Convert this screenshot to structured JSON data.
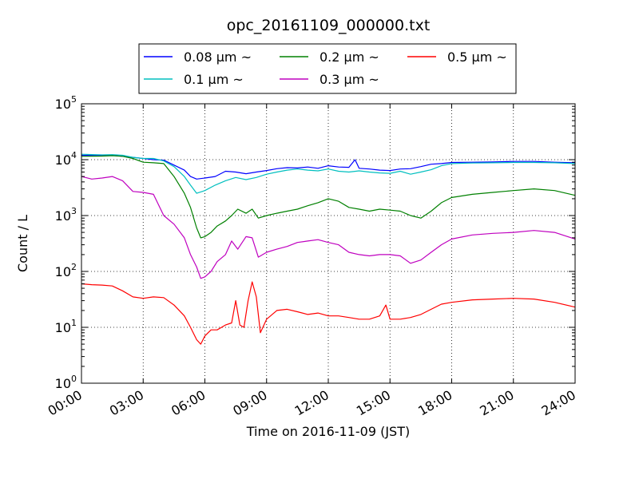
{
  "chart_data": {
    "type": "line",
    "title": "opc_20161109_000000.txt",
    "xlabel": "Time on 2016-11-09 (JST)",
    "ylabel": "Count / L",
    "x_ticks": [
      "00:00",
      "03:00",
      "06:00",
      "09:00",
      "12:00",
      "15:00",
      "18:00",
      "21:00",
      "24:00"
    ],
    "y_ticks": [
      {
        "base": "10",
        "exp": "0"
      },
      {
        "base": "10",
        "exp": "1"
      },
      {
        "base": "10",
        "exp": "2"
      },
      {
        "base": "10",
        "exp": "3"
      },
      {
        "base": "10",
        "exp": "4"
      },
      {
        "base": "10",
        "exp": "5"
      }
    ],
    "yscale": "log",
    "ylim": [
      1,
      100000
    ],
    "xlim_hours": [
      0,
      24
    ],
    "grid": true,
    "legend_position": "top-center, above plot",
    "series": [
      {
        "name": "0.08 μm ~",
        "color": "#0000ff",
        "x": [
          0,
          1,
          1.5,
          2,
          2.5,
          3,
          3.5,
          4,
          4.5,
          5,
          5.3,
          5.6,
          6,
          6.5,
          7,
          7.5,
          8,
          8.5,
          9,
          9.5,
          10,
          10.5,
          11,
          11.5,
          12,
          12.5,
          13,
          13.3,
          13.5,
          14,
          14.5,
          15,
          15.5,
          16,
          16.5,
          17,
          17.5,
          18,
          19,
          20,
          21,
          22,
          23,
          24
        ],
        "y": [
          12000,
          11800,
          12000,
          11500,
          11000,
          10500,
          10000,
          9800,
          8000,
          6500,
          5000,
          4500,
          4700,
          5000,
          6200,
          6000,
          5600,
          6000,
          6400,
          6900,
          7200,
          7100,
          7400,
          7000,
          7800,
          7400,
          7300,
          10000,
          7000,
          6800,
          6500,
          6400,
          6800,
          6900,
          7500,
          8300,
          8500,
          8900,
          9000,
          9100,
          9300,
          9300,
          9000,
          8800
        ]
      },
      {
        "name": "0.1 μm ~",
        "color": "#00bfbf",
        "x": [
          0,
          1,
          1.5,
          2,
          2.5,
          3,
          3.5,
          4,
          4.5,
          5,
          5.3,
          5.6,
          6,
          6.5,
          7,
          7.5,
          8,
          8.5,
          9,
          9.5,
          10,
          10.5,
          11,
          11.5,
          12,
          12.5,
          13,
          13.5,
          14,
          14.5,
          15,
          15.5,
          16,
          16.5,
          17,
          17.5,
          18,
          19,
          20,
          21,
          22,
          23,
          24
        ],
        "y": [
          12500,
          12200,
          12300,
          12000,
          11000,
          10500,
          10500,
          9500,
          7500,
          5000,
          3500,
          2500,
          2800,
          3500,
          4200,
          4800,
          4400,
          4800,
          5500,
          6000,
          6500,
          6800,
          6500,
          6300,
          6800,
          6200,
          6000,
          6300,
          6000,
          5800,
          5700,
          6200,
          5500,
          6000,
          6600,
          7800,
          8500,
          8700,
          8800,
          8900,
          8900,
          8800,
          8500
        ]
      },
      {
        "name": "0.2 μm ~",
        "color": "#008000",
        "x": [
          0,
          1,
          1.5,
          2,
          2.5,
          3,
          3.5,
          4,
          4.5,
          5,
          5.3,
          5.6,
          5.8,
          6,
          6.3,
          6.6,
          7,
          7.3,
          7.6,
          8,
          8.3,
          8.6,
          9,
          9.5,
          10,
          10.5,
          11,
          11.5,
          12,
          12.5,
          13,
          13.5,
          14,
          14.5,
          15,
          15.5,
          16,
          16.5,
          17,
          17.5,
          18,
          19,
          20,
          21,
          22,
          23,
          24
        ],
        "y": [
          11500,
          11600,
          11800,
          11500,
          10500,
          9000,
          8800,
          8500,
          5000,
          2500,
          1400,
          600,
          400,
          420,
          500,
          650,
          800,
          1000,
          1300,
          1100,
          1300,
          900,
          1000,
          1100,
          1200,
          1300,
          1500,
          1700,
          2000,
          1800,
          1400,
          1300,
          1200,
          1300,
          1250,
          1200,
          1000,
          900,
          1200,
          1700,
          2100,
          2400,
          2600,
          2800,
          3000,
          2800,
          2300
        ]
      },
      {
        "name": "0.3 μm ~",
        "color": "#bf00bf",
        "x": [
          0,
          0.5,
          1,
          1.5,
          2,
          2.5,
          3,
          3.5,
          4,
          4.5,
          5,
          5.3,
          5.6,
          5.8,
          6,
          6.3,
          6.6,
          7,
          7.3,
          7.6,
          8,
          8.3,
          8.6,
          9,
          9.5,
          10,
          10.5,
          11,
          11.5,
          12,
          12.5,
          13,
          13.5,
          14,
          14.5,
          15,
          15.5,
          16,
          16.5,
          17,
          17.5,
          18,
          19,
          20,
          21,
          22,
          23,
          24
        ],
        "y": [
          5000,
          4500,
          4700,
          5000,
          4200,
          2700,
          2600,
          2400,
          1000,
          700,
          400,
          200,
          120,
          75,
          80,
          100,
          150,
          200,
          350,
          250,
          420,
          400,
          180,
          220,
          250,
          280,
          330,
          350,
          370,
          330,
          300,
          220,
          200,
          190,
          200,
          200,
          190,
          140,
          160,
          220,
          300,
          380,
          450,
          480,
          500,
          540,
          500,
          380
        ]
      },
      {
        "name": "0.5 μm ~",
        "color": "#ff0000",
        "x": [
          0,
          0.5,
          1,
          1.5,
          2,
          2.5,
          3,
          3.5,
          4,
          4.5,
          5,
          5.3,
          5.6,
          5.8,
          6,
          6.3,
          6.6,
          7,
          7.3,
          7.5,
          7.7,
          7.9,
          8.1,
          8.3,
          8.5,
          8.7,
          9,
          9.5,
          10,
          10.5,
          11,
          11.5,
          12,
          12.5,
          13,
          13.5,
          14,
          14.5,
          14.8,
          15,
          15.5,
          16,
          16.5,
          17,
          17.5,
          18,
          19,
          20,
          21,
          22,
          23,
          24
        ],
        "y": [
          60,
          58,
          57,
          55,
          45,
          35,
          33,
          35,
          34,
          25,
          16,
          10,
          6,
          5,
          7,
          9,
          9,
          11,
          12,
          30,
          11,
          10,
          30,
          65,
          35,
          8,
          14,
          20,
          21,
          19,
          17,
          18,
          16,
          16,
          15,
          14,
          14,
          16,
          25,
          14,
          14,
          15,
          17,
          21,
          26,
          28,
          31,
          32,
          33,
          32,
          28,
          23
        ]
      }
    ]
  }
}
